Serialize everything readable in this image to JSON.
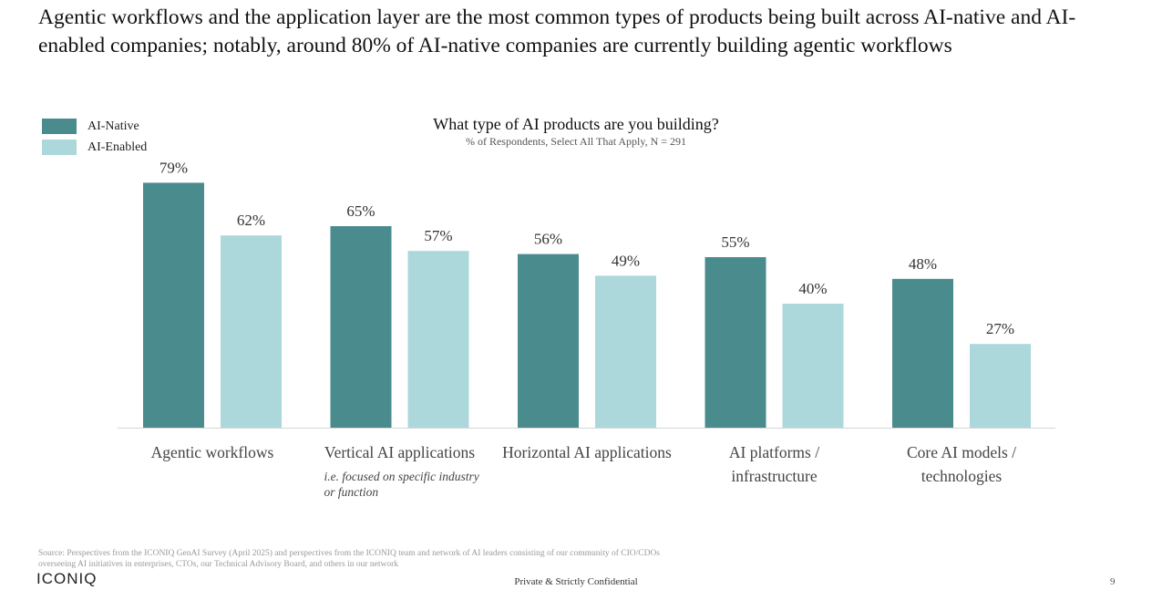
{
  "headline": "Agentic workflows and the application layer are the most common types of products being built across AI-native and AI-enabled companies; notably, around 80% of AI-native companies are currently building agentic workflows",
  "colors": {
    "ai_native": "#4a8b8e",
    "ai_enabled": "#acd8db",
    "axis": "#d6d6d6"
  },
  "chart_data": {
    "type": "bar",
    "title": "What type of AI products are you building?",
    "subtitle": "% of Respondents, Select All That Apply, N = 291",
    "categories": [
      "Agentic workflows",
      "Vertical AI applications",
      "Horizontal AI applications",
      "AI platforms / infrastructure",
      "Core AI models / technologies"
    ],
    "category_lines": [
      [
        "Agentic workflows"
      ],
      [
        "Vertical AI applications"
      ],
      [
        "Horizontal AI applications"
      ],
      [
        "AI platforms /",
        "infrastructure"
      ],
      [
        "Core AI models /",
        "technologies"
      ]
    ],
    "category_notes": [
      [],
      [
        "i.e. focused on specific industry",
        "or function"
      ],
      [],
      [],
      []
    ],
    "series": [
      {
        "name": "AI-Native",
        "values": [
          79,
          65,
          56,
          55,
          48
        ],
        "labels": [
          "79%",
          "65%",
          "56%",
          "55%",
          "48%"
        ]
      },
      {
        "name": "AI-Enabled",
        "values": [
          62,
          57,
          49,
          40,
          27
        ],
        "labels": [
          "62%",
          "57%",
          "49%",
          "40%",
          "27%"
        ]
      }
    ],
    "ylim": [
      0,
      100
    ],
    "grid": false,
    "legend_position": "top-left"
  },
  "footer": {
    "source": "Source: Perspectives from the ICONIQ GenAI Survey (April 2025) and perspectives from the ICONIQ team and network of AI leaders consisting of our community of CIO/CDOs overseeing AI initiatives in enterprises, CTOs, our Technical Advisory Board, and others in our network",
    "logo": "ICONIQ",
    "confidential": "Private & Strictly Confidential",
    "page": "9"
  }
}
